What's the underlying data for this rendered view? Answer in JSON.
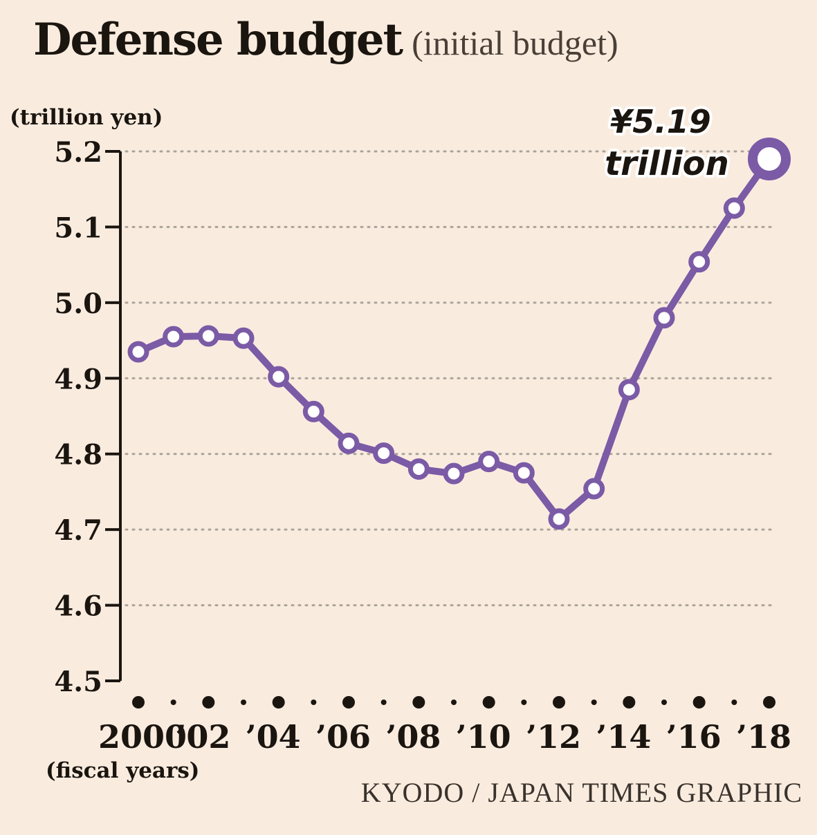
{
  "title": {
    "main": "Defense budget",
    "sub": "(initial budget)"
  },
  "credit": "KYODO / JAPAN TIMES GRAPHIC",
  "colors": {
    "background": "#f9ecdf",
    "line": "#7b5aa6",
    "grid": "#aaa39b",
    "text": "#1b1510"
  },
  "chart_data": {
    "type": "line",
    "title": "Defense budget (initial budget)",
    "ylabel": "(trillion yen)",
    "xlabel": "(fiscal years)",
    "ylim": [
      4.5,
      5.2
    ],
    "yticks": [
      "5.2",
      "5.1",
      "5.0",
      "4.9",
      "4.8",
      "4.7",
      "4.6",
      "4.5"
    ],
    "x": [
      2000,
      2001,
      2002,
      2003,
      2004,
      2005,
      2006,
      2007,
      2008,
      2009,
      2010,
      2011,
      2012,
      2013,
      2014,
      2015,
      2016,
      2017,
      2018
    ],
    "xtick_labels": [
      {
        "year": 2000,
        "label": "2000"
      },
      {
        "year": 2002,
        "label": "’02"
      },
      {
        "year": 2004,
        "label": "’04"
      },
      {
        "year": 2006,
        "label": "’06"
      },
      {
        "year": 2008,
        "label": "’08"
      },
      {
        "year": 2010,
        "label": "’10"
      },
      {
        "year": 2012,
        "label": "’12"
      },
      {
        "year": 2014,
        "label": "’14"
      },
      {
        "year": 2016,
        "label": "’16"
      },
      {
        "year": 2018,
        "label": "’18"
      }
    ],
    "series": [
      {
        "values": [
          4.935,
          4.955,
          4.956,
          4.953,
          4.902,
          4.856,
          4.814,
          4.801,
          4.78,
          4.774,
          4.79,
          4.775,
          4.714,
          4.754,
          4.885,
          4.98,
          5.054,
          5.125,
          5.19
        ]
      }
    ],
    "annotation": {
      "value_text": "¥5.19",
      "unit_text": "trillion",
      "year": 2018
    },
    "grid": true,
    "legend": "none"
  }
}
